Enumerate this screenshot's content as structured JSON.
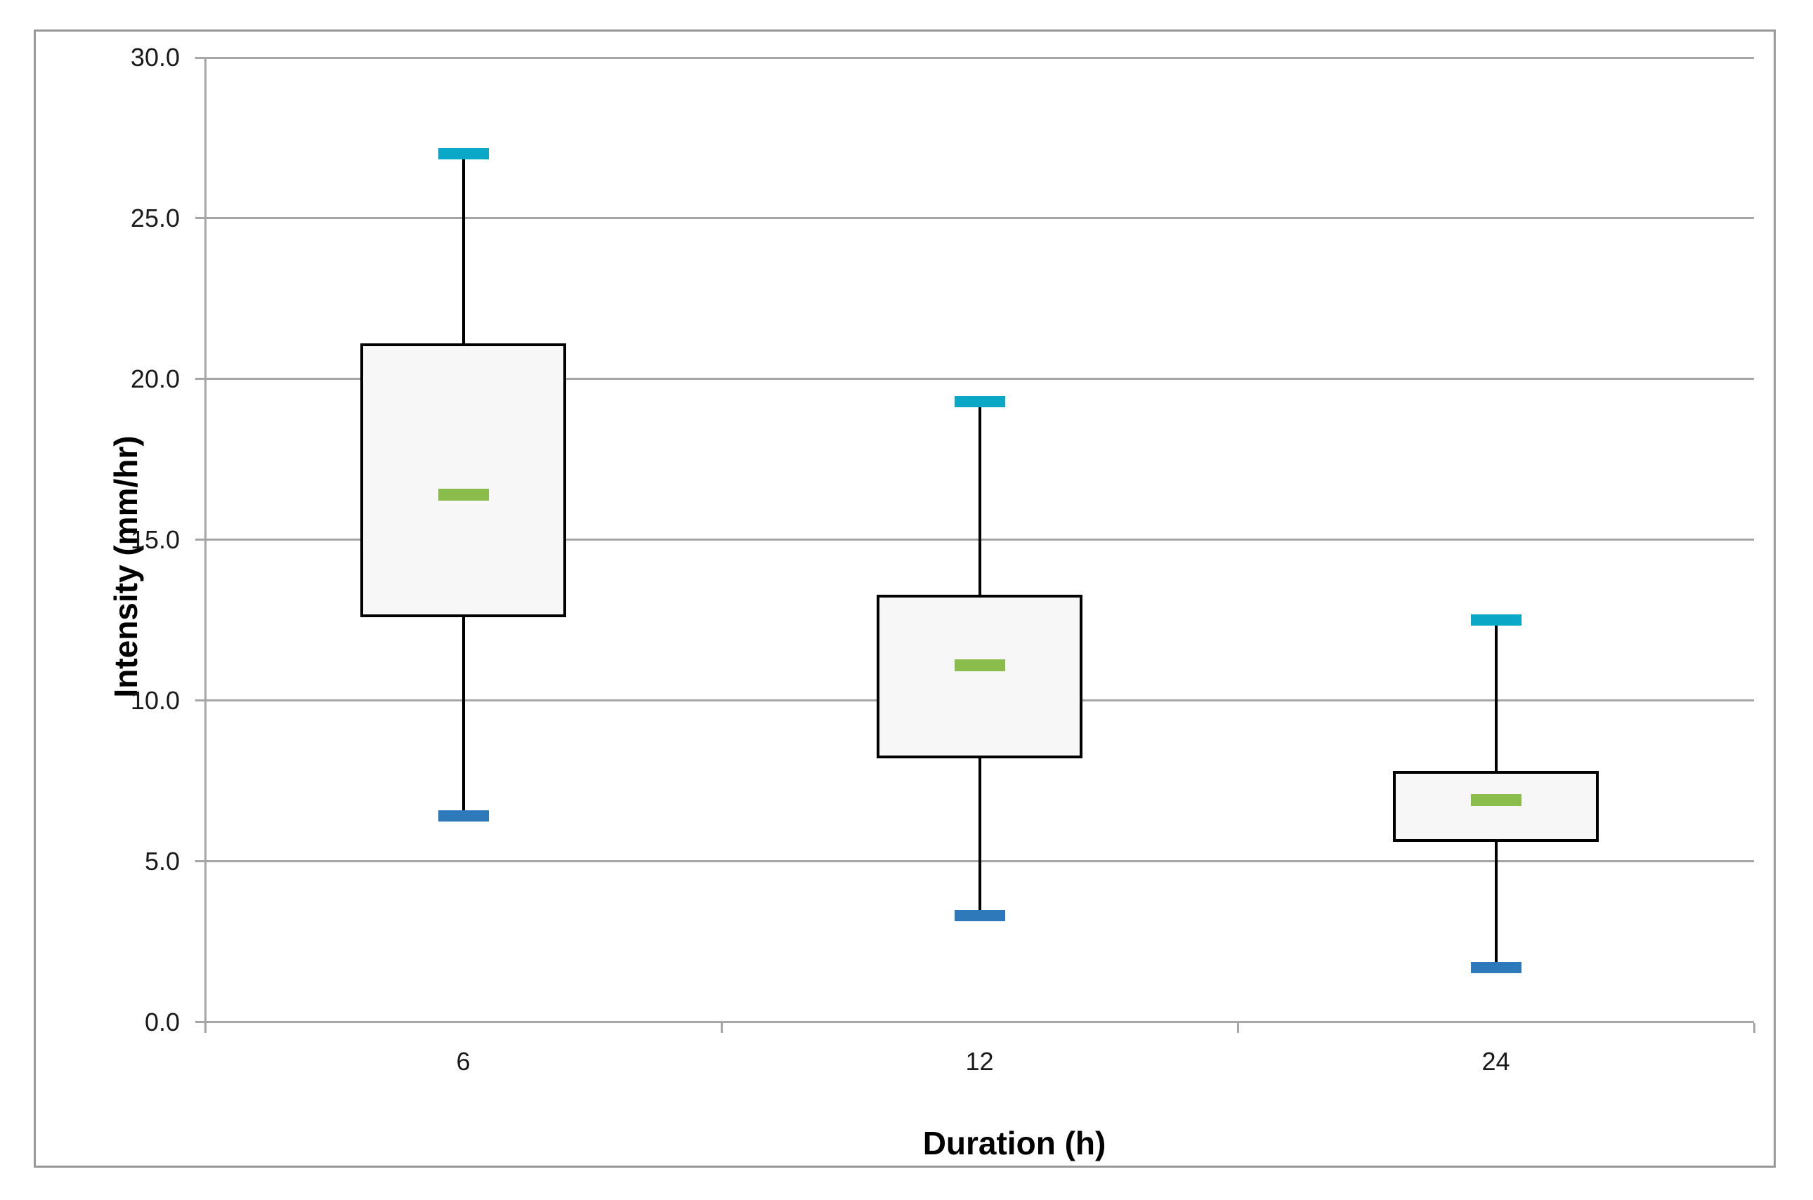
{
  "chart_data": {
    "type": "boxplot",
    "title": "",
    "xlabel": "Duration (h)",
    "ylabel": "Intensity (mm/hr)",
    "categories": [
      "6",
      "12",
      "24"
    ],
    "ylim": [
      0,
      30
    ],
    "ytick_step": 5,
    "ytick_labels": [
      "0.0",
      "5.0",
      "10.0",
      "15.0",
      "20.0",
      "25.0",
      "30.0"
    ],
    "grid": "horizontal-only",
    "legend": "none",
    "series": [
      {
        "category": "6",
        "whisker_low": 6.4,
        "q1": 12.6,
        "median": 16.4,
        "q3": 21.1,
        "whisker_high": 27.0
      },
      {
        "category": "12",
        "whisker_low": 3.3,
        "q1": 8.2,
        "median": 11.1,
        "q3": 13.3,
        "whisker_high": 19.3
      },
      {
        "category": "24",
        "whisker_low": 1.7,
        "q1": 5.6,
        "median": 6.9,
        "q3": 7.8,
        "whisker_high": 12.5
      }
    ],
    "colors": {
      "whisker_high_cap": "#0AA7C6",
      "whisker_low_cap": "#2E79B9",
      "median_marker": "#8ABD4C",
      "box_fill": "#F7F7F7",
      "box_border": "#000000",
      "whisker_line": "#000000",
      "gridline": "#A6A6A6",
      "axis_line": "#A6A6A6",
      "outer_border": "#999999",
      "text": "#1a1a1a"
    }
  }
}
